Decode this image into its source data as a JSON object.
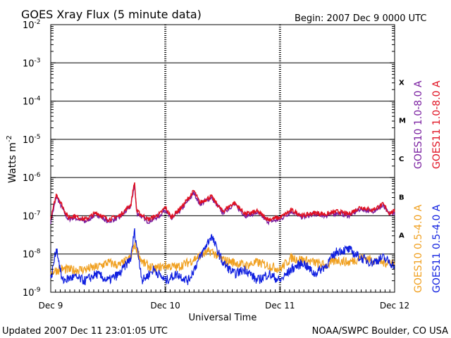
{
  "chart_data": {
    "type": "line",
    "title": "GOES Xray Flux (5 minute data)",
    "begin_label": "Begin:  2007 Dec 9 0000 UTC",
    "xlabel": "Universal Time",
    "ylabel_prefix": "Watts m",
    "ylabel_exp": "-2",
    "y_scale": "log",
    "ylim": [
      1e-09,
      0.01
    ],
    "xlim_days": [
      0,
      3
    ],
    "x_ticks": [
      {
        "day": 0,
        "label": "Dec 9"
      },
      {
        "day": 1,
        "label": "Dec 10"
      },
      {
        "day": 2,
        "label": "Dec 11"
      },
      {
        "day": 3,
        "label": "Dec 12"
      }
    ],
    "y_ticks": [
      {
        "exp": -2,
        "label": "10",
        "sup": "-2"
      },
      {
        "exp": -3,
        "label": "10",
        "sup": "-3"
      },
      {
        "exp": -4,
        "label": "10",
        "sup": "-4"
      },
      {
        "exp": -5,
        "label": "10",
        "sup": "-5"
      },
      {
        "exp": -6,
        "label": "10",
        "sup": "-6"
      },
      {
        "exp": -7,
        "label": "10",
        "sup": "-7"
      },
      {
        "exp": -8,
        "label": "10",
        "sup": "-8"
      },
      {
        "exp": -9,
        "label": "10",
        "sup": "-9"
      }
    ],
    "flare_classes": [
      {
        "label": "X",
        "exp": -3.5
      },
      {
        "label": "M",
        "exp": -4.5
      },
      {
        "label": "C",
        "exp": -5.5
      },
      {
        "label": "B",
        "exp": -6.5
      },
      {
        "label": "A",
        "exp": -7.5
      }
    ],
    "grid": "horizontal decades, dashed vertical day lines",
    "series": [
      {
        "name": "GOES10 1.0-8.0 A",
        "color": "#7a1fa0",
        "x": [
          0,
          0.05,
          0.15,
          0.2,
          0.3,
          0.4,
          0.5,
          0.6,
          0.7,
          0.73,
          0.75,
          0.85,
          0.95,
          1.0,
          1.05,
          1.15,
          1.25,
          1.3,
          1.4,
          1.5,
          1.6,
          1.7,
          1.8,
          1.9,
          2.0,
          2.1,
          2.2,
          2.3,
          2.4,
          2.5,
          2.6,
          2.7,
          2.8,
          2.9,
          2.95,
          3.0
        ],
        "y": [
          7e-08,
          3.2e-07,
          8e-08,
          9e-08,
          7e-08,
          1.1e-07,
          7e-08,
          9e-08,
          1.8e-07,
          7e-07,
          1.2e-07,
          7e-08,
          1e-07,
          1.5e-07,
          8e-08,
          1.6e-07,
          4e-07,
          2e-07,
          3e-07,
          1.2e-07,
          2e-07,
          1e-07,
          1.2e-07,
          7e-08,
          8e-08,
          1.3e-07,
          9e-08,
          1.1e-07,
          1e-07,
          1.2e-07,
          1e-07,
          1.5e-07,
          1.3e-07,
          1.8e-07,
          1.1e-07,
          1.2e-07
        ]
      },
      {
        "name": "GOES11 1.0-8.0 A",
        "color": "#e01020",
        "x": [
          0,
          0.05,
          0.15,
          0.2,
          0.3,
          0.4,
          0.5,
          0.6,
          0.7,
          0.73,
          0.75,
          0.85,
          0.95,
          1.0,
          1.05,
          1.15,
          1.25,
          1.3,
          1.4,
          1.5,
          1.6,
          1.7,
          1.8,
          1.9,
          2.0,
          2.1,
          2.2,
          2.3,
          2.4,
          2.5,
          2.6,
          2.7,
          2.8,
          2.9,
          2.95,
          3.0
        ],
        "y": [
          8e-08,
          3.8e-07,
          9e-08,
          1e-07,
          8e-08,
          1.2e-07,
          8e-08,
          1e-07,
          2e-07,
          8e-07,
          1.3e-07,
          8e-08,
          1.1e-07,
          1.7e-07,
          9e-08,
          1.8e-07,
          4.5e-07,
          2.2e-07,
          3.2e-07,
          1.3e-07,
          2.2e-07,
          1.1e-07,
          1.3e-07,
          8e-08,
          9e-08,
          1.4e-07,
          1e-07,
          1.2e-07,
          1.1e-07,
          1.3e-07,
          1.1e-07,
          1.7e-07,
          1.4e-07,
          2e-07,
          1.2e-07,
          1.3e-07
        ]
      },
      {
        "name": "GOES10 0.5-4.0 A",
        "color": "#f0a020",
        "x": [
          0,
          0.1,
          0.2,
          0.3,
          0.4,
          0.5,
          0.6,
          0.7,
          0.73,
          0.8,
          0.9,
          1.0,
          1.1,
          1.2,
          1.3,
          1.4,
          1.5,
          1.6,
          1.7,
          1.8,
          1.9,
          2.0,
          2.1,
          2.2,
          2.3,
          2.4,
          2.5,
          2.6,
          2.7,
          2.8,
          2.9,
          3.0
        ],
        "y": [
          3.5e-09,
          4e-09,
          3.8e-09,
          4e-09,
          4.5e-09,
          6e-09,
          5e-09,
          8e-09,
          1.8e-08,
          6e-09,
          4e-09,
          5e-09,
          4.5e-09,
          6e-09,
          9e-09,
          1.2e-08,
          7e-09,
          6e-09,
          5e-09,
          6e-09,
          5e-09,
          4e-09,
          8e-09,
          7e-09,
          6e-09,
          5e-09,
          7e-09,
          6e-09,
          8e-09,
          7e-09,
          6e-09,
          6e-09
        ]
      },
      {
        "name": "GOES11 0.5-4.0 A",
        "color": "#1020e0",
        "x": [
          0,
          0.05,
          0.1,
          0.2,
          0.3,
          0.4,
          0.5,
          0.6,
          0.7,
          0.73,
          0.8,
          0.9,
          1.0,
          1.1,
          1.2,
          1.3,
          1.4,
          1.5,
          1.6,
          1.7,
          1.8,
          1.9,
          2.0,
          2.1,
          2.2,
          2.3,
          2.4,
          2.5,
          2.6,
          2.7,
          2.8,
          2.9,
          3.0
        ],
        "y": [
          2e-09,
          1.5e-08,
          2e-09,
          2.5e-09,
          2e-09,
          3e-09,
          2e-09,
          3e-09,
          8e-09,
          4e-08,
          2e-09,
          4e-09,
          2e-09,
          3e-09,
          2e-09,
          8e-09,
          3e-08,
          6e-09,
          3e-09,
          4e-09,
          2e-09,
          3e-09,
          2e-09,
          4e-09,
          6e-09,
          3e-09,
          5e-09,
          1.2e-08,
          1.3e-08,
          8e-09,
          6e-09,
          8e-09,
          5e-09
        ]
      }
    ]
  },
  "footer": {
    "updated": "Updated 2007 Dec 11 23:01:05 UTC",
    "source": "NOAA/SWPC Boulder, CO USA"
  }
}
